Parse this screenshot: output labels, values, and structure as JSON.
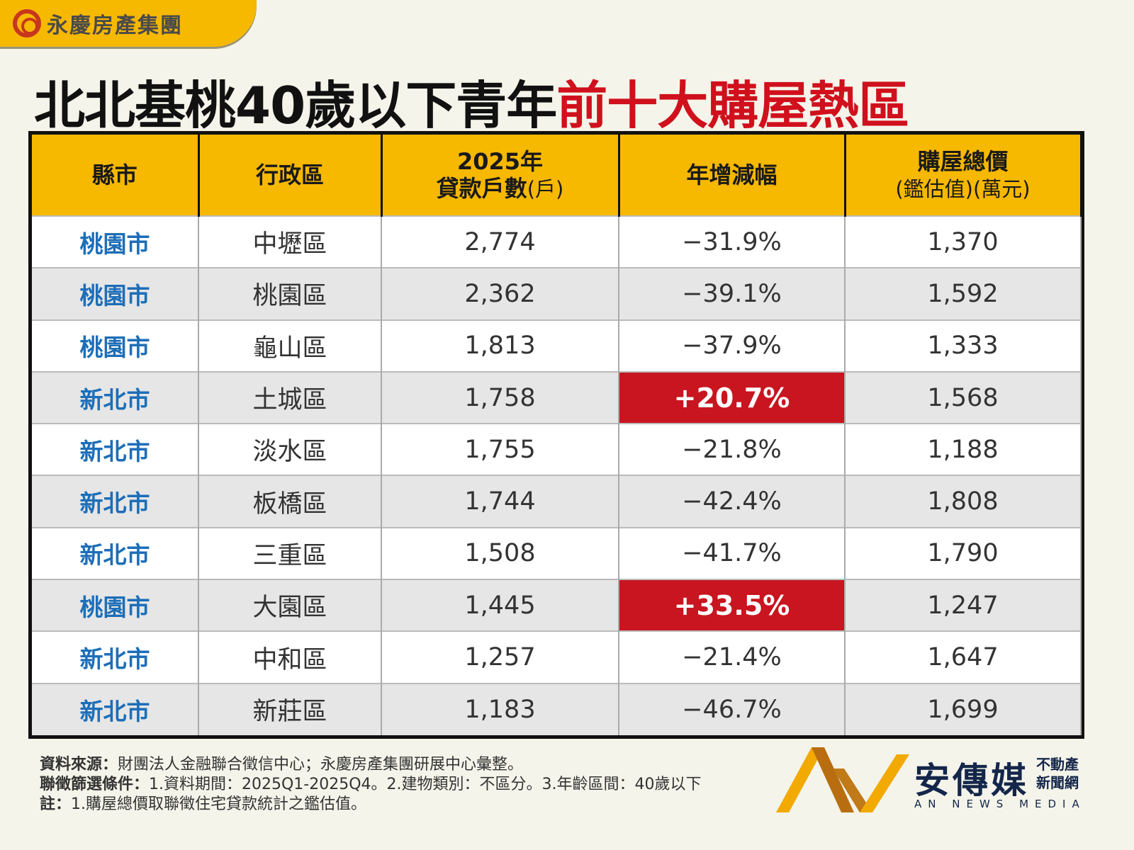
{
  "brand": {
    "name": "永慶房產集團"
  },
  "title": {
    "part1": "北北基桃40歲以下青年",
    "part2": "前十大購屋熱區"
  },
  "table": {
    "headers": [
      {
        "line1": "縣市",
        "line2": ""
      },
      {
        "line1": "行政區",
        "line2": ""
      },
      {
        "line1": "2025年",
        "line2": "貸款戶數",
        "unit": "(戶)"
      },
      {
        "line1": "年增減幅",
        "line2": ""
      },
      {
        "line1": "購屋總價",
        "line2": "(鑑估值)(萬元)"
      }
    ],
    "rows": [
      {
        "city": "桃園市",
        "district": "中壢區",
        "loans": "2,774",
        "change": "−31.9%",
        "price": "1,370",
        "positive": false
      },
      {
        "city": "桃園市",
        "district": "桃園區",
        "loans": "2,362",
        "change": "−39.1%",
        "price": "1,592",
        "positive": false
      },
      {
        "city": "桃園市",
        "district": "龜山區",
        "loans": "1,813",
        "change": "−37.9%",
        "price": "1,333",
        "positive": false
      },
      {
        "city": "新北市",
        "district": "土城區",
        "loans": "1,758",
        "change": "+20.7%",
        "price": "1,568",
        "positive": true
      },
      {
        "city": "新北市",
        "district": "淡水區",
        "loans": "1,755",
        "change": "−21.8%",
        "price": "1,188",
        "positive": false
      },
      {
        "city": "新北市",
        "district": "板橋區",
        "loans": "1,744",
        "change": "−42.4%",
        "price": "1,808",
        "positive": false
      },
      {
        "city": "新北市",
        "district": "三重區",
        "loans": "1,508",
        "change": "−41.7%",
        "price": "1,790",
        "positive": false
      },
      {
        "city": "桃園市",
        "district": "大園區",
        "loans": "1,445",
        "change": "+33.5%",
        "price": "1,247",
        "positive": true
      },
      {
        "city": "新北市",
        "district": "中和區",
        "loans": "1,257",
        "change": "−21.4%",
        "price": "1,647",
        "positive": false
      },
      {
        "city": "新北市",
        "district": "新莊區",
        "loans": "1,183",
        "change": "−46.7%",
        "price": "1,699",
        "positive": false
      }
    ]
  },
  "footer": {
    "source_label": "資料來源：",
    "source": "財團法人金融聯合徵信中心；永慶房產集團研展中心彙整。",
    "criteria_label": "聯徵篩選條件：",
    "criteria": "1.資料期間：2025Q1-2025Q4。2.建物類別：不區分。3.年齡區間：40歲以下",
    "note_label": "註：",
    "note": "1.購屋總價取聯徵住宅貸款統計之鑑估值。"
  },
  "media_logo": {
    "name": "安傳媒",
    "sub1": "不動產",
    "sub2": "新聞網",
    "en": "AN NEWS MEDIA"
  },
  "colors": {
    "header": "#f7b800",
    "title_red": "#d0101c",
    "city_blue": "#1d6eb8",
    "positive_bg": "#c8151f"
  }
}
